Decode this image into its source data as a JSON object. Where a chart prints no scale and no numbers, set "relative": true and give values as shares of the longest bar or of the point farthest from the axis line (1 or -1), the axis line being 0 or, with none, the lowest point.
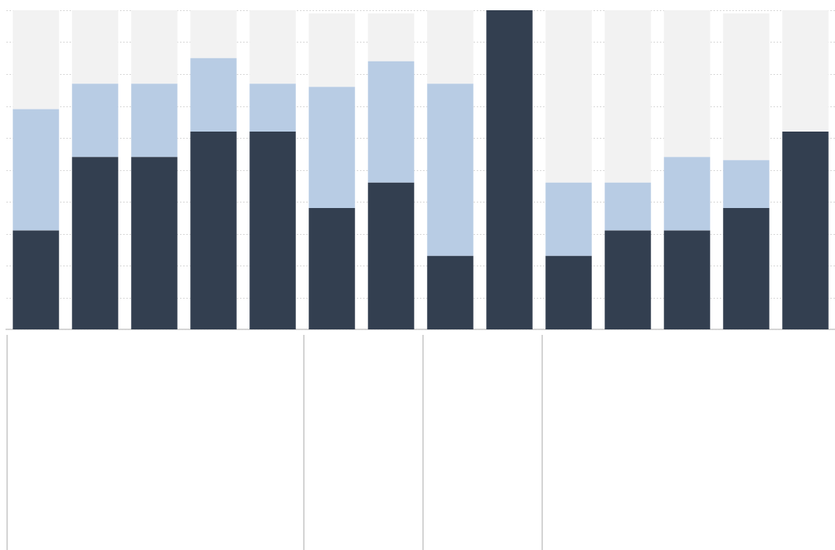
{
  "chart_data": {
    "type": "bar",
    "stacked": true,
    "relative": true,
    "grid": "y",
    "categories": [
      null,
      null,
      null,
      null,
      null,
      null,
      null,
      null,
      null,
      null,
      null,
      null,
      null,
      null
    ],
    "series": [
      {
        "color": "#333f50",
        "values": [
          0.31,
          0.54,
          0.54,
          0.62,
          0.62,
          0.38,
          0.46,
          0.23,
          1,
          0.23,
          0.31,
          0.31,
          0.38,
          0.62
        ]
      },
      {
        "color": "#b8cce4",
        "values": [
          0.38,
          0.23,
          0.23,
          0.23,
          0.15,
          0.38,
          0.38,
          0.54,
          0,
          0.23,
          0.15,
          0.23,
          0.15,
          0
        ]
      },
      {
        "color": "#f2f2f2",
        "values": [
          0.31,
          0.23,
          0.23,
          0.15,
          0.23,
          0.23,
          0.15,
          0.23,
          0,
          0.54,
          0.54,
          0.46,
          0.46,
          0.38
        ]
      }
    ]
  }
}
